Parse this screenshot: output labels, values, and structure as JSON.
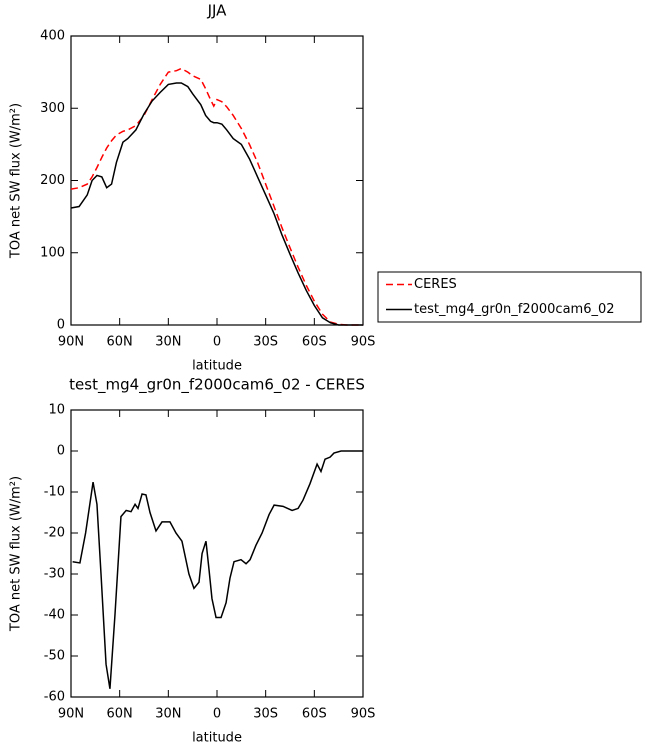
{
  "chart_data": [
    {
      "type": "line",
      "title": "JJA",
      "xlabel": "latitude",
      "ylabel": "TOA net SW flux (W/m²)",
      "x": [
        90,
        85,
        80,
        77,
        74,
        71,
        68,
        65,
        62,
        58,
        55,
        50,
        45,
        40,
        35,
        30,
        25,
        22,
        18,
        15,
        10,
        7,
        4,
        2,
        0,
        -3,
        -6,
        -10,
        -15,
        -20,
        -25,
        -30,
        -35,
        -40,
        -45,
        -50,
        -55,
        -60,
        -65,
        -70,
        -75,
        -80,
        -85,
        -90
      ],
      "series": [
        {
          "name": "CERES",
          "color": "#ff0000",
          "dashed": true,
          "values": [
            188,
            190,
            195,
            205,
            218,
            232,
            245,
            255,
            263,
            268,
            270,
            276,
            290,
            312,
            333,
            350,
            352,
            355,
            350,
            345,
            340,
            327,
            312,
            303,
            312,
            309,
            302,
            290,
            272,
            250,
            225,
            195,
            165,
            135,
            107,
            80,
            55,
            33,
            15,
            4,
            1,
            0,
            0,
            0
          ]
        },
        {
          "name": "test_mg4_gr0n_f2000cam6_02",
          "color": "#000000",
          "dashed": false,
          "values": [
            162,
            164,
            180,
            200,
            207,
            205,
            190,
            195,
            225,
            253,
            258,
            270,
            292,
            310,
            322,
            333,
            335,
            335,
            330,
            320,
            305,
            290,
            282,
            280,
            280,
            278,
            270,
            258,
            250,
            230,
            205,
            180,
            155,
            125,
            98,
            72,
            48,
            27,
            10,
            3,
            0,
            0,
            0,
            0
          ]
        }
      ],
      "xlim": [
        90,
        -90
      ],
      "xticks": [
        {
          "value": 90,
          "label": "90N"
        },
        {
          "value": 60,
          "label": "60N"
        },
        {
          "value": 30,
          "label": "30N"
        },
        0,
        {
          "value": -30,
          "label": "30S"
        },
        {
          "value": -60,
          "label": "60S"
        },
        {
          "value": -90,
          "label": "90S"
        }
      ],
      "ylim": [
        0,
        400
      ],
      "yticks": [
        0,
        100,
        200,
        300,
        400
      ],
      "legend": "right"
    },
    {
      "type": "line",
      "title": "test_mg4_gr0n_f2000cam6_02 - CERES",
      "xlabel": "latitude",
      "ylabel": "TOA net SW flux (W/m²)",
      "x": [
        89,
        84.5,
        81,
        76.4,
        74,
        71.5,
        68.4,
        66,
        62.9,
        59.2,
        56,
        53,
        50.5,
        48.7,
        46.2,
        43.8,
        41.3,
        37.6,
        33.9,
        29,
        25.3,
        21.6,
        17.3,
        14.2,
        11.1,
        9.2,
        6.8,
        4.9,
        3.1,
        0.6,
        -2.5,
        -5.6,
        -8,
        -10.5,
        -14.8,
        -17.9,
        -20.4,
        -24,
        -27.8,
        -32.1,
        -35.2,
        -40.7,
        -46.3,
        -50,
        -53,
        -57.3,
        -61.7,
        -64.1,
        -66.6,
        -69.7,
        -72.1,
        -76.5,
        -82,
        -90
      ],
      "values": [
        -27,
        -27.3,
        -20,
        -7.6,
        -13,
        -30,
        -52,
        -58,
        -40,
        -16,
        -14.5,
        -14.8,
        -13,
        -14,
        -10.5,
        -10.7,
        -15,
        -19.5,
        -17.3,
        -17.3,
        -20,
        -22,
        -30,
        -33.5,
        -32,
        -25,
        -22,
        -29,
        -36,
        -40.6,
        -40.6,
        -37,
        -31,
        -27,
        -26.5,
        -27.5,
        -26.5,
        -23,
        -20,
        -15.5,
        -13.2,
        -13.5,
        -14.5,
        -14,
        -12,
        -8,
        -3.2,
        -5,
        -2,
        -1.5,
        -0.5,
        0,
        0,
        0
      ],
      "color": "#000000",
      "xlim": [
        90,
        -90
      ],
      "xticks": [
        {
          "value": 90,
          "label": "90N"
        },
        {
          "value": 60,
          "label": "60N"
        },
        {
          "value": 30,
          "label": "30N"
        },
        0,
        {
          "value": -30,
          "label": "30S"
        },
        {
          "value": -60,
          "label": "60S"
        },
        {
          "value": -90,
          "label": "90S"
        }
      ],
      "ylim": [
        -60,
        10
      ],
      "yticks": [
        -60,
        -50,
        -40,
        -30,
        -20,
        -10,
        0,
        10
      ]
    }
  ]
}
